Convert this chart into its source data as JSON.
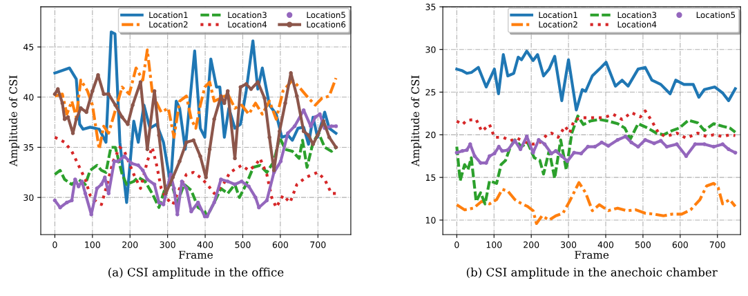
{
  "chart_data": [
    {
      "type": "line",
      "xlabel": "Frame",
      "ylabel": "Amplitude of CSI",
      "xlim": [
        -37.5,
        787.5
      ],
      "ylim": [
        26.3,
        49.0
      ],
      "xticks": [
        0,
        100,
        200,
        300,
        400,
        500,
        600,
        700
      ],
      "yticks": [
        30,
        35,
        40,
        45
      ],
      "grid": true,
      "legend": "top right",
      "annotations": [
        "(a) CSI amplitude in the office"
      ],
      "series": [
        {
          "name": "Location1",
          "color": "#1f77b4",
          "line_style": "solid",
          "marker": "none",
          "x": [
            0,
            39,
            57,
            66,
            75,
            94,
            118,
            136,
            150,
            160,
            173,
            191,
            210,
            222,
            237,
            253,
            271,
            289,
            308,
            323,
            332,
            347,
            372,
            387,
            399,
            415,
            430,
            439,
            451,
            463,
            479,
            494,
            509,
            527,
            540,
            552,
            571,
            589,
            604,
            620,
            632,
            647,
            662,
            675,
            687,
            699,
            718,
            730,
            748
          ],
          "values": [
            42.4,
            42.9,
            41.8,
            37.3,
            36.8,
            37.0,
            36.8,
            35.5,
            46.5,
            46.3,
            35.5,
            29.5,
            37.6,
            35.5,
            39.2,
            36.9,
            37.3,
            35.5,
            31.3,
            39.6,
            38.9,
            34.8,
            44.6,
            36.9,
            36.0,
            43.8,
            41.0,
            41.0,
            36.0,
            38.9,
            36.9,
            37.3,
            40.6,
            45.6,
            40.8,
            42.9,
            39.2,
            38.3,
            36.0,
            36.2,
            35.7,
            36.9,
            37.0,
            35.3,
            38.0,
            36.0,
            38.5,
            36.9,
            36.4
          ]
        },
        {
          "name": "Location2",
          "color": "#ff7f0e",
          "line_style": "dashdot",
          "marker": "none",
          "x": [
            0,
            20,
            32,
            45,
            57,
            69,
            87,
            100,
            118,
            130,
            143,
            161,
            179,
            198,
            216,
            234,
            246,
            259,
            271,
            283,
            302,
            317,
            332,
            350,
            363,
            375,
            387,
            399,
            412,
            424,
            442,
            460,
            479,
            497,
            516,
            534,
            552,
            571,
            589,
            607,
            632,
            650,
            675,
            693,
            711,
            730,
            748
          ],
          "values": [
            40.1,
            40.3,
            38.3,
            39.6,
            38.0,
            41.7,
            40.6,
            39.2,
            34.8,
            37.1,
            36.4,
            38.7,
            41.0,
            40.3,
            42.9,
            41.7,
            44.7,
            40.6,
            39.4,
            38.5,
            38.9,
            36.0,
            39.6,
            40.1,
            37.8,
            36.9,
            39.2,
            41.0,
            41.5,
            39.6,
            39.9,
            40.3,
            38.9,
            39.2,
            38.3,
            39.4,
            38.3,
            39.6,
            37.8,
            40.6,
            41.7,
            41.0,
            39.9,
            39.2,
            39.9,
            40.1,
            41.9
          ]
        },
        {
          "name": "Location3",
          "color": "#2ca02c",
          "line_style": "dashed",
          "marker": "none",
          "x": [
            0,
            14,
            26,
            45,
            63,
            81,
            94,
            112,
            124,
            136,
            149,
            161,
            179,
            191,
            210,
            222,
            240,
            259,
            277,
            295,
            311,
            326,
            344,
            363,
            381,
            399,
            405,
            424,
            442,
            460,
            479,
            491,
            509,
            528,
            546,
            564,
            583,
            598,
            613,
            632,
            650,
            659,
            671,
            687,
            702,
            718,
            736,
            748
          ],
          "values": [
            32.3,
            32.7,
            31.8,
            31.3,
            31.8,
            31.3,
            32.7,
            33.2,
            32.7,
            32.5,
            35.0,
            35.0,
            32.3,
            31.3,
            31.6,
            32.0,
            31.6,
            30.4,
            29.0,
            31.1,
            31.3,
            29.5,
            31.3,
            30.7,
            29.0,
            28.6,
            28.1,
            29.5,
            30.9,
            30.4,
            31.3,
            30.0,
            31.3,
            33.0,
            33.2,
            32.5,
            33.6,
            36.0,
            34.8,
            34.6,
            33.9,
            35.7,
            33.0,
            35.5,
            36.4,
            35.0,
            34.6,
            35.0
          ]
        },
        {
          "name": "Location4",
          "color": "#d62728",
          "line_style": "dotted",
          "marker": "none",
          "x": [
            0,
            26,
            45,
            63,
            81,
            94,
            112,
            124,
            136,
            155,
            173,
            185,
            210,
            228,
            246,
            259,
            271,
            283,
            295,
            314,
            332,
            350,
            369,
            387,
            406,
            424,
            448,
            466,
            497,
            516,
            534,
            546,
            564,
            577,
            589,
            607,
            626,
            644,
            668,
            699,
            718,
            736,
            748
          ],
          "values": [
            36.0,
            35.5,
            34.6,
            33.2,
            31.8,
            30.2,
            29.5,
            29.3,
            30.9,
            33.6,
            35.0,
            34.6,
            32.3,
            30.9,
            33.6,
            35.0,
            33.2,
            30.9,
            30.0,
            29.3,
            30.9,
            32.3,
            32.5,
            32.0,
            31.3,
            30.4,
            31.3,
            32.5,
            33.2,
            32.7,
            33.2,
            33.9,
            32.3,
            30.0,
            29.0,
            30.2,
            29.5,
            31.3,
            32.0,
            32.5,
            31.8,
            30.4,
            30.4
          ]
        },
        {
          "name": "Location5",
          "color": "#9467bd",
          "line_style": "solid",
          "marker": "circle",
          "x": [
            0,
            14,
            32,
            45,
            54,
            63,
            72,
            81,
            97,
            112,
            124,
            133,
            143,
            158,
            167,
            185,
            204,
            222,
            234,
            246,
            265,
            277,
            289,
            308,
            317,
            326,
            338,
            350,
            363,
            381,
            399,
            405,
            424,
            442,
            460,
            479,
            497,
            516,
            534,
            543,
            564,
            583,
            601,
            620,
            638,
            662,
            681,
            693,
            705,
            718,
            736,
            748
          ],
          "values": [
            29.7,
            29.0,
            29.5,
            29.7,
            31.8,
            31.1,
            31.6,
            30.4,
            28.3,
            30.9,
            31.3,
            32.0,
            30.4,
            33.6,
            33.6,
            34.1,
            33.4,
            33.2,
            32.7,
            31.8,
            31.3,
            29.5,
            29.3,
            32.3,
            30.9,
            28.3,
            31.6,
            30.9,
            28.6,
            29.5,
            28.1,
            28.1,
            29.5,
            31.8,
            31.6,
            31.3,
            31.6,
            31.1,
            30.0,
            29.0,
            29.7,
            32.5,
            33.6,
            36.4,
            37.1,
            38.7,
            37.1,
            38.0,
            38.3,
            36.9,
            37.1,
            37.1
          ]
        },
        {
          "name": "Location6",
          "color": "#8c564b",
          "line_style": "solid",
          "marker": "circle",
          "x": [
            0,
            8,
            20,
            26,
            35,
            48,
            57,
            69,
            84,
            100,
            115,
            130,
            143,
            161,
            179,
            194,
            207,
            228,
            246,
            265,
            277,
            295,
            314,
            332,
            350,
            369,
            387,
            402,
            412,
            424,
            442,
            451,
            460,
            479,
            494,
            509,
            522,
            540,
            558,
            571,
            583,
            598,
            613,
            628,
            644,
            662,
            675,
            687,
            699,
            715,
            730,
            748
          ],
          "values": [
            40.3,
            40.8,
            39.4,
            37.8,
            38.0,
            36.4,
            37.8,
            38.9,
            38.5,
            40.6,
            42.2,
            40.3,
            40.3,
            39.2,
            38.0,
            37.3,
            39.2,
            41.5,
            34.8,
            40.6,
            36.2,
            30.4,
            32.0,
            33.6,
            35.5,
            35.7,
            34.1,
            32.0,
            34.8,
            37.8,
            40.1,
            39.4,
            40.6,
            33.9,
            41.0,
            41.3,
            40.8,
            41.5,
            39.9,
            36.0,
            32.7,
            36.6,
            39.4,
            42.4,
            40.1,
            36.6,
            36.2,
            35.3,
            36.2,
            37.6,
            36.0,
            35.0
          ]
        }
      ]
    },
    {
      "type": "line",
      "xlabel": "Frame",
      "ylabel": "Amplitude of CSI",
      "xlim": [
        -37.5,
        762
      ],
      "ylim": [
        8.3,
        35.0
      ],
      "xticks": [
        0,
        100,
        200,
        300,
        400,
        500,
        600,
        700
      ],
      "yticks": [
        10,
        15,
        20,
        25,
        30,
        35
      ],
      "grid": true,
      "legend": "top right",
      "annotations": [
        "(b) CSI amplitude in the anechoic chamber"
      ],
      "series": [
        {
          "name": "Location1",
          "color": "#1f77b4",
          "line_style": "solid",
          "marker": "none",
          "x": [
            0,
            15,
            27,
            39,
            58,
            79,
            101,
            112,
            125,
            137,
            153,
            165,
            174,
            188,
            205,
            217,
            233,
            248,
            263,
            282,
            300,
            321,
            337,
            346,
            364,
            383,
            401,
            426,
            444,
            460,
            487,
            506,
            524,
            548,
            573,
            588,
            610,
            635,
            650,
            665,
            693,
            714,
            730,
            748
          ],
          "values": [
            27.7,
            27.5,
            27.2,
            27.3,
            27.9,
            25.6,
            27.7,
            24.8,
            29.4,
            26.9,
            27.2,
            29.1,
            28.8,
            29.8,
            28.7,
            29.4,
            26.9,
            27.7,
            29.2,
            24.0,
            28.8,
            22.9,
            25.3,
            25.1,
            26.9,
            27.7,
            28.5,
            25.7,
            26.4,
            25.7,
            27.7,
            27.9,
            26.4,
            25.9,
            24.8,
            26.4,
            25.9,
            25.9,
            24.4,
            25.3,
            25.6,
            24.9,
            24.0,
            25.4
          ]
        },
        {
          "name": "Location2",
          "color": "#ff7f0e",
          "line_style": "dashdot",
          "marker": "none",
          "x": [
            0,
            21,
            45,
            67,
            88,
            107,
            122,
            137,
            156,
            171,
            190,
            205,
            214,
            229,
            248,
            266,
            285,
            303,
            328,
            346,
            364,
            383,
            407,
            432,
            456,
            481,
            506,
            530,
            555,
            579,
            604,
            628,
            653,
            671,
            690,
            702,
            714,
            733,
            748
          ],
          "values": [
            11.8,
            11.2,
            11.4,
            12.2,
            11.9,
            12.4,
            13.6,
            13.4,
            12.4,
            12.0,
            11.6,
            11.1,
            9.6,
            10.5,
            10.0,
            10.5,
            10.8,
            12.2,
            14.4,
            13.2,
            11.1,
            11.8,
            11.1,
            11.4,
            11.1,
            11.2,
            10.8,
            10.7,
            10.5,
            10.7,
            10.7,
            11.2,
            12.4,
            14.0,
            14.3,
            13.8,
            11.9,
            12.4,
            11.6
          ]
        },
        {
          "name": "Location3",
          "color": "#2ca02c",
          "line_style": "dashed",
          "marker": "none",
          "x": [
            0,
            9,
            21,
            30,
            39,
            52,
            64,
            76,
            88,
            107,
            119,
            131,
            144,
            156,
            174,
            190,
            208,
            223,
            233,
            248,
            263,
            279,
            294,
            309,
            325,
            340,
            358,
            383,
            407,
            432,
            451,
            466,
            487,
            512,
            536,
            555,
            579,
            598,
            622,
            647,
            665,
            690,
            714,
            733,
            748
          ],
          "values": [
            18.6,
            14.6,
            16.5,
            15.9,
            17.3,
            12.2,
            13.2,
            11.9,
            14.6,
            14.3,
            16.5,
            17.0,
            18.6,
            19.4,
            18.6,
            19.1,
            17.3,
            17.0,
            15.4,
            18.1,
            14.9,
            19.4,
            15.9,
            20.2,
            22.2,
            21.2,
            21.6,
            21.8,
            21.6,
            21.3,
            20.8,
            19.5,
            21.3,
            20.8,
            20.2,
            20.0,
            20.5,
            20.8,
            21.7,
            21.4,
            20.5,
            21.3,
            21.0,
            20.8,
            20.3
          ]
        },
        {
          "name": "Location4",
          "color": "#d62728",
          "line_style": "dotted",
          "marker": "none",
          "x": [
            0,
            15,
            27,
            52,
            67,
            88,
            101,
            125,
            144,
            162,
            186,
            205,
            223,
            242,
            254,
            272,
            291,
            303,
            315,
            334,
            358,
            371,
            395,
            420,
            444,
            469,
            493,
            506,
            524,
            542,
            561,
            591,
            616,
            647,
            671,
            690,
            714,
            733,
            748
          ],
          "values": [
            21.6,
            21.2,
            21.7,
            21.8,
            20.4,
            21.2,
            19.7,
            19.7,
            19.3,
            19.6,
            19.1,
            18.9,
            19.1,
            20.0,
            20.2,
            19.7,
            21.0,
            20.2,
            21.7,
            22.0,
            22.0,
            22.0,
            22.0,
            22.4,
            21.8,
            22.6,
            22.1,
            22.8,
            21.6,
            20.2,
            19.8,
            20.2,
            19.6,
            20.2,
            19.8,
            20.0,
            19.8,
            20.0,
            19.9
          ]
        },
        {
          "name": "Location5",
          "color": "#9467bd",
          "line_style": "solid",
          "marker": "circle",
          "x": [
            0,
            15,
            27,
            36,
            48,
            64,
            79,
            88,
            101,
            113,
            122,
            137,
            156,
            171,
            188,
            205,
            220,
            236,
            254,
            266,
            282,
            297,
            315,
            334,
            352,
            371,
            389,
            407,
            432,
            453,
            469,
            487,
            506,
            530,
            548,
            564,
            591,
            616,
            640,
            665,
            690,
            714,
            730,
            748
          ],
          "values": [
            17.9,
            18.1,
            18.2,
            18.9,
            17.5,
            16.7,
            16.7,
            17.5,
            17.8,
            18.6,
            18.1,
            18.2,
            19.3,
            18.3,
            19.8,
            17.9,
            19.4,
            18.9,
            17.8,
            18.1,
            17.5,
            16.9,
            17.9,
            17.8,
            18.6,
            18.6,
            19.1,
            18.7,
            19.4,
            19.8,
            19.1,
            18.6,
            19.4,
            19.0,
            19.3,
            18.6,
            18.9,
            17.5,
            18.9,
            18.9,
            18.6,
            18.9,
            18.3,
            17.9
          ]
        }
      ]
    }
  ]
}
